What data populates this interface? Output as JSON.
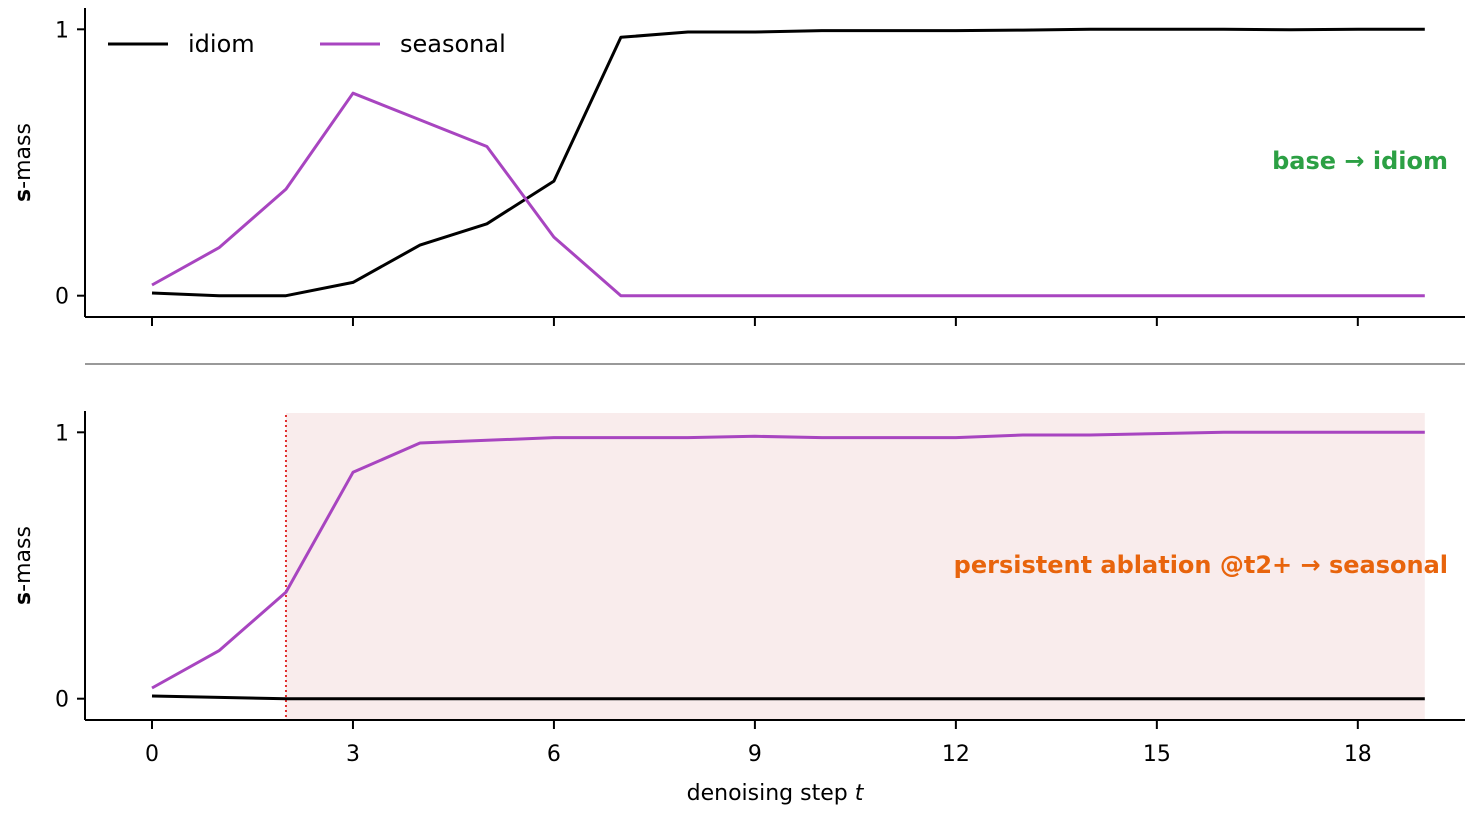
{
  "colors": {
    "idiom": "#000000",
    "seasonal": "#a845c0",
    "annotation_top": "#2ca044",
    "annotation_bottom": "#e8640c",
    "shade": "#f9ecec",
    "marker": "#e03030",
    "separator": "#999999"
  },
  "chart_data": [
    {
      "type": "line",
      "panel": "top",
      "ylabel_bold": "s",
      "ylabel_rest": "-mass",
      "xlim": [
        -1,
        19.6
      ],
      "ylim": [
        -0.08,
        1.08
      ],
      "yticks": [
        0,
        1
      ],
      "ytick_labels": [
        "0",
        "1"
      ],
      "xticks": [
        0,
        3,
        6,
        9,
        12,
        15,
        18
      ],
      "show_xtick_labels": false,
      "legend": {
        "placement": "top-left",
        "entries": [
          "idiom",
          "seasonal"
        ]
      },
      "x": [
        0,
        1,
        2,
        3,
        4,
        5,
        6,
        7,
        8,
        9,
        10,
        11,
        12,
        13,
        14,
        15,
        16,
        17,
        18,
        19
      ],
      "series": [
        {
          "name": "idiom",
          "values": [
            0.01,
            0.0,
            0.0,
            0.05,
            0.19,
            0.27,
            0.43,
            0.97,
            0.99,
            0.99,
            0.995,
            0.995,
            0.995,
            0.997,
            1.0,
            1.0,
            1.0,
            0.998,
            1.0,
            1.0
          ]
        },
        {
          "name": "seasonal",
          "values": [
            0.04,
            0.18,
            0.4,
            0.76,
            0.66,
            0.56,
            0.22,
            0.0,
            0.0,
            0.0,
            0.0,
            0.0,
            0.0,
            0.0,
            0.0,
            0.0,
            0.0,
            0.0,
            0.0,
            0.0
          ]
        }
      ],
      "annotation": "base → idiom"
    },
    {
      "type": "line",
      "panel": "bottom",
      "ylabel_bold": "s",
      "ylabel_rest": "-mass",
      "xlabel_text": "denoising step ",
      "xlabel_var": "t",
      "xlim": [
        -1,
        19.6
      ],
      "ylim": [
        -0.08,
        1.08
      ],
      "yticks": [
        0,
        1
      ],
      "ytick_labels": [
        "0",
        "1"
      ],
      "xticks": [
        0,
        3,
        6,
        9,
        12,
        15,
        18
      ],
      "xtick_labels": [
        "0",
        "3",
        "6",
        "9",
        "12",
        "15",
        "18"
      ],
      "shaded_region_x": [
        2,
        19
      ],
      "vline_x": 2,
      "x": [
        0,
        1,
        2,
        3,
        4,
        5,
        6,
        7,
        8,
        9,
        10,
        11,
        12,
        13,
        14,
        15,
        16,
        17,
        18,
        19
      ],
      "series": [
        {
          "name": "idiom",
          "values": [
            0.01,
            0.005,
            0.0,
            0.0,
            0.0,
            0.0,
            0.0,
            0.0,
            0.0,
            0.0,
            0.0,
            0.0,
            0.0,
            0.0,
            0.0,
            0.0,
            0.0,
            0.0,
            0.0,
            0.0
          ]
        },
        {
          "name": "seasonal",
          "values": [
            0.04,
            0.18,
            0.4,
            0.85,
            0.96,
            0.97,
            0.98,
            0.98,
            0.98,
            0.985,
            0.98,
            0.98,
            0.98,
            0.99,
            0.99,
            0.995,
            1.0,
            1.0,
            1.0,
            1.0
          ]
        }
      ],
      "annotation": "persistent ablation @t2+ → seasonal"
    }
  ]
}
